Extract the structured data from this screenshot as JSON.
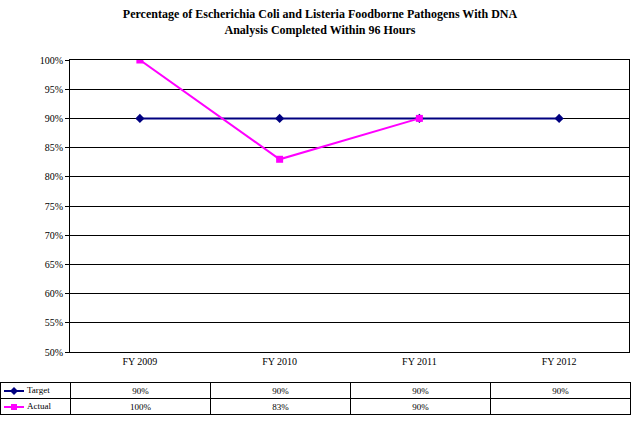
{
  "chart_data": {
    "type": "line",
    "title": "Percentage of Escherichia Coli and Listeria Foodborne Pathogens With DNA Analysis Completed Within 96 Hours",
    "categories": [
      "FY 2009",
      "FY 2010",
      "FY 2011",
      "FY 2012"
    ],
    "series": [
      {
        "name": "Target",
        "color": "#000080",
        "marker": "diamond",
        "values": [
          90,
          90,
          90,
          90
        ],
        "value_labels": [
          "90%",
          "90%",
          "90%",
          "90%"
        ]
      },
      {
        "name": "Actual",
        "color": "#FF00FF",
        "marker": "square",
        "values": [
          100,
          83,
          90,
          null
        ],
        "value_labels": [
          "100%",
          "83%",
          "90%",
          null
        ]
      }
    ],
    "ylim": [
      50,
      100
    ],
    "yticks": [
      {
        "value": 50,
        "label": "50%"
      },
      {
        "value": 55,
        "label": "55%"
      },
      {
        "value": 60,
        "label": "60%"
      },
      {
        "value": 65,
        "label": "65%"
      },
      {
        "value": 70,
        "label": "70%"
      },
      {
        "value": 75,
        "label": "75%"
      },
      {
        "value": 80,
        "label": "80%"
      },
      {
        "value": 85,
        "label": "85%"
      },
      {
        "value": 90,
        "label": "90%"
      },
      {
        "value": 95,
        "label": "95%"
      },
      {
        "value": 100,
        "label": "100%"
      }
    ],
    "grid": true
  }
}
